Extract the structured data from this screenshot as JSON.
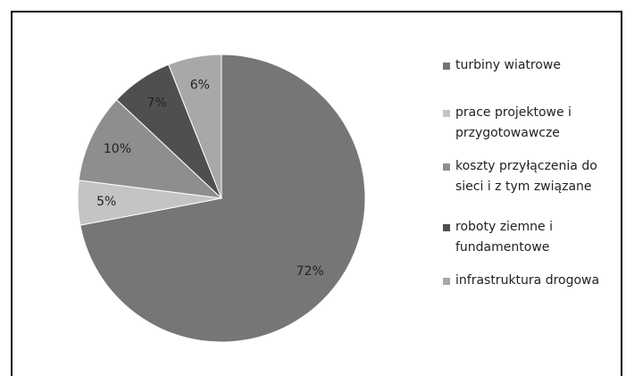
{
  "chart_data": {
    "type": "pie",
    "categories": [
      "turbiny wiatrowe",
      "prace projektowe i przygotowawcze",
      "koszty przyłączenia do sieci i z tym związane",
      "roboty ziemne i fundamentowe",
      "infrastruktura drogowa"
    ],
    "values": [
      72,
      5,
      10,
      7,
      6
    ],
    "value_labels": [
      "72%",
      "5%",
      "10%",
      "7%",
      "6%"
    ],
    "colors": [
      "#767676",
      "#c4c4c4",
      "#8e8e8e",
      "#4f4f4f",
      "#a8a8a8"
    ]
  }
}
